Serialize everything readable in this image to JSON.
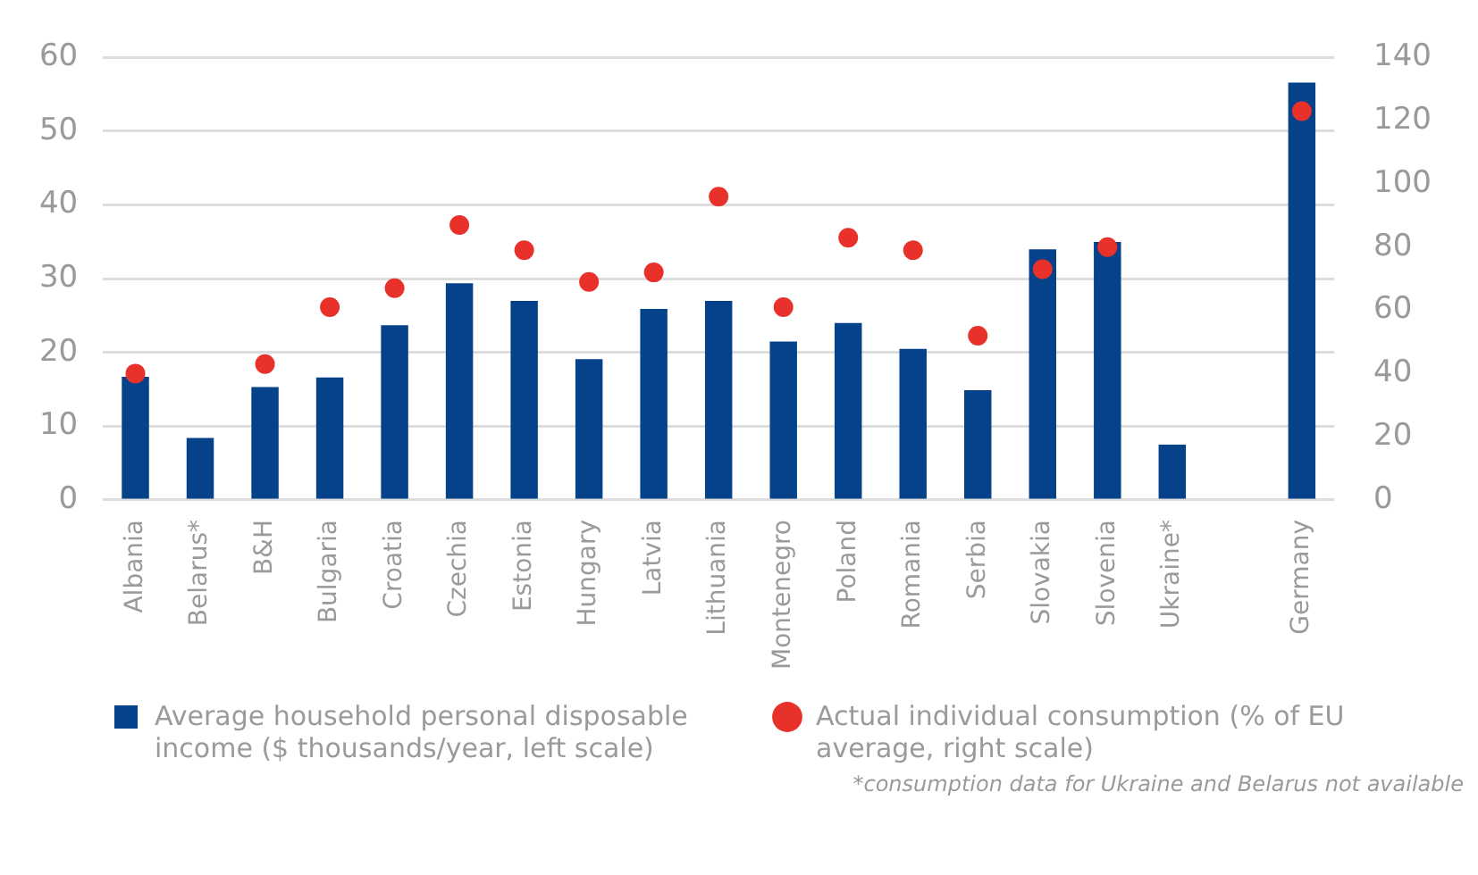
{
  "chart_data": {
    "type": "bar",
    "categories": [
      "Albania",
      "Belarus*",
      "B&H",
      "Bulgaria",
      "Croatia",
      "Czechia",
      "Estonia",
      "Hungary",
      "Latvia",
      "Lithuania",
      "Montenegro",
      "Poland",
      "Romania",
      "Serbia",
      "Slovakia",
      "Slovenia",
      "Ukraine*",
      null,
      "Germany"
    ],
    "series": [
      {
        "name": "Average household personal disposable income ($ thousands/year, left scale)",
        "color": "#054289",
        "values": [
          16.7,
          8.4,
          15.3,
          16.6,
          23.7,
          29.4,
          27.0,
          19.1,
          25.9,
          27.0,
          21.5,
          24.0,
          20.5,
          14.9,
          34.0,
          35.0,
          7.5,
          null,
          56.6
        ]
      },
      {
        "name": "Actual individual consumption (% of EU average, right scale)",
        "type": "scatter",
        "axis": "y2",
        "marker": "circle",
        "color": "#e8312a",
        "values": [
          40,
          null,
          43,
          61,
          67,
          87,
          79,
          69,
          72,
          96,
          61,
          83,
          79,
          52,
          73,
          80,
          null,
          null,
          123
        ]
      }
    ],
    "ylim": [
      0,
      60
    ],
    "yticks": [
      0,
      10,
      20,
      30,
      40,
      50,
      60
    ],
    "y2lim": [
      0,
      140
    ],
    "y2ticks": [
      0,
      20,
      40,
      60,
      80,
      100,
      120,
      140
    ],
    "grid": "y",
    "legend": "bottom",
    "annotations": [
      "*consumption data for Ukraine and Belarus not available"
    ]
  }
}
